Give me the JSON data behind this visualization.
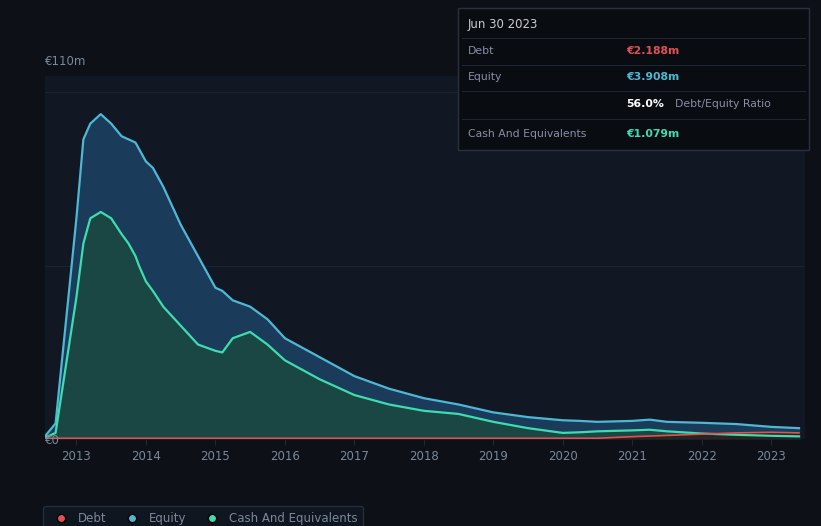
{
  "background_color": "#0d1117",
  "plot_bg_color": "#111823",
  "title_box": {
    "date": "Jun 30 2023",
    "debt_label": "Debt",
    "debt_value": "€2.188m",
    "debt_color": "#e05252",
    "equity_label": "Equity",
    "equity_value": "€3.908m",
    "equity_color": "#4eb8d4",
    "ratio_value": "56.0%",
    "ratio_label": "Debt/Equity Ratio",
    "ratio_value_color": "#ffffff",
    "ratio_label_color": "#888ea8",
    "cash_label": "Cash And Equivalents",
    "cash_value": "€1.079m",
    "cash_color": "#3edcb0"
  },
  "y_label_top": "€110m",
  "y_label_zero": "€0",
  "x_ticks": [
    2013,
    2014,
    2015,
    2016,
    2017,
    2018,
    2019,
    2020,
    2021,
    2022,
    2023
  ],
  "equity_color": "#4eb8d4",
  "equity_fill_color": "#1b3b5a",
  "cash_color": "#3edcb0",
  "cash_fill_color": "#1a4a40",
  "debt_color": "#e05252",
  "legend_labels": [
    "Debt",
    "Equity",
    "Cash And Equivalents"
  ],
  "grid_color": "#1e2a3a",
  "text_color": "#7a8899",
  "years": [
    2012.55,
    2012.7,
    2013.0,
    2013.1,
    2013.2,
    2013.35,
    2013.5,
    2013.65,
    2013.75,
    2013.85,
    2013.9,
    2014.0,
    2014.1,
    2014.25,
    2014.5,
    2014.75,
    2015.0,
    2015.1,
    2015.25,
    2015.5,
    2015.75,
    2016.0,
    2016.25,
    2016.5,
    2017.0,
    2017.5,
    2018.0,
    2018.25,
    2018.5,
    2019.0,
    2019.5,
    2020.0,
    2020.25,
    2020.5,
    2021.0,
    2021.25,
    2021.5,
    2022.0,
    2022.5,
    2023.0,
    2023.4
  ],
  "equity_data": [
    1,
    5,
    70,
    95,
    100,
    103,
    100,
    96,
    95,
    94,
    92,
    88,
    86,
    80,
    68,
    58,
    48,
    47,
    44,
    42,
    38,
    32,
    29,
    26,
    20,
    16,
    13,
    12,
    11,
    8.5,
    7,
    6,
    5.8,
    5.5,
    5.8,
    6.2,
    5.5,
    5.2,
    4.8,
    3.908,
    3.5
  ],
  "cash_data": [
    0.5,
    2,
    45,
    62,
    70,
    72,
    70,
    65,
    62,
    58,
    55,
    50,
    47,
    42,
    36,
    30,
    28,
    27.5,
    32,
    34,
    30,
    25,
    22,
    19,
    14,
    11,
    9,
    8.5,
    8,
    5.5,
    3.5,
    2,
    2.2,
    2.5,
    2.8,
    3.0,
    2.5,
    1.8,
    1.4,
    1.079,
    0.9
  ],
  "debt_data": [
    0.3,
    0.3,
    0.3,
    0.3,
    0.3,
    0.3,
    0.3,
    0.3,
    0.3,
    0.3,
    0.3,
    0.3,
    0.3,
    0.3,
    0.3,
    0.3,
    0.3,
    0.3,
    0.3,
    0.3,
    0.3,
    0.3,
    0.3,
    0.3,
    0.3,
    0.3,
    0.3,
    0.3,
    0.3,
    0.3,
    0.3,
    0.3,
    0.3,
    0.3,
    0.8,
    1.0,
    1.2,
    1.6,
    2.0,
    2.188,
    2.0
  ],
  "ylim": [
    0,
    115
  ],
  "xlim": [
    2012.55,
    2023.48
  ]
}
